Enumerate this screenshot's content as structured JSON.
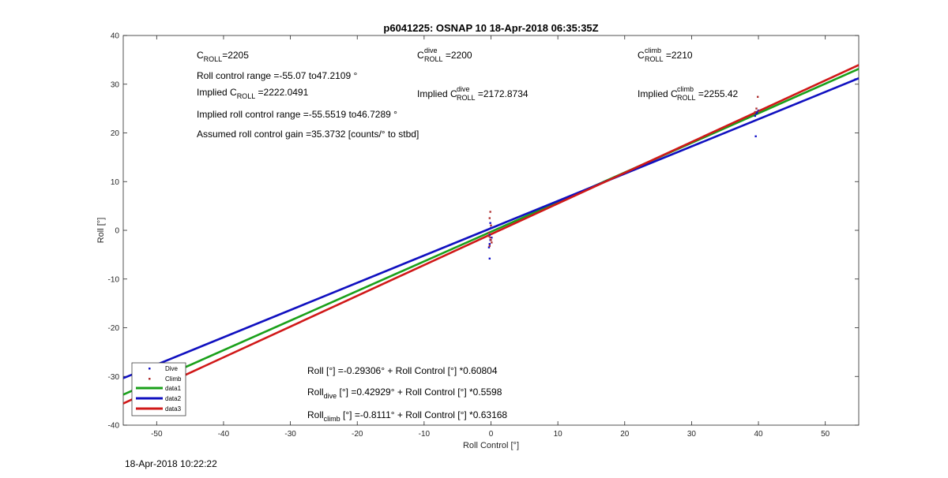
{
  "chart_data": {
    "type": "scatter",
    "title": "p6041225: OSNAP 10 18-Apr-2018 06:35:35Z",
    "xlabel": "Roll Control [°]",
    "ylabel": "Roll [°]",
    "xlim": [
      -55,
      55
    ],
    "ylim": [
      -40,
      40
    ],
    "xticks": [
      -50,
      -40,
      -30,
      -20,
      -10,
      0,
      10,
      20,
      30,
      40,
      50
    ],
    "yticks": [
      -40,
      -30,
      -20,
      -10,
      0,
      10,
      20,
      30,
      40
    ],
    "grid": false,
    "legend_position": "bottom-left",
    "series": [
      {
        "name": "Dive",
        "kind": "points",
        "color": "#1010c8",
        "points": [
          [
            -51.5,
            -28.5
          ],
          [
            -49.5,
            -27.5
          ],
          [
            -0.2,
            -5.8
          ],
          [
            -0.3,
            -3.5
          ],
          [
            -0.1,
            -2.0
          ],
          [
            -0.2,
            -1.0
          ],
          [
            0.0,
            0.5
          ],
          [
            -0.1,
            1.5
          ],
          [
            -0.2,
            -2.8
          ],
          [
            0.1,
            -1.5
          ],
          [
            39.6,
            19.3
          ],
          [
            39.5,
            23.5
          ],
          [
            39.7,
            24.0
          ],
          [
            40.0,
            24.6
          ],
          [
            39.8,
            24.2
          ],
          [
            54.5,
            31.0
          ]
        ]
      },
      {
        "name": "Climb",
        "kind": "points",
        "color": "#b03030",
        "points": [
          [
            -51.4,
            -30.7
          ],
          [
            -0.1,
            3.8
          ],
          [
            -0.2,
            2.5
          ],
          [
            0.0,
            1.0
          ],
          [
            -0.3,
            -0.5
          ],
          [
            -0.1,
            -1.5
          ],
          [
            0.1,
            -2.5
          ],
          [
            -0.2,
            -3.2
          ],
          [
            -0.3,
            -1.2
          ],
          [
            0.0,
            -2.0
          ],
          [
            39.9,
            27.4
          ],
          [
            39.7,
            25.0
          ],
          [
            39.5,
            24.3
          ],
          [
            40.1,
            24.5
          ]
        ]
      },
      {
        "name": "data1",
        "kind": "line",
        "color": "#1aa01a",
        "intercept": -0.29306,
        "slope": 0.60804
      },
      {
        "name": "data2",
        "kind": "line",
        "color": "#1010c0",
        "intercept": 0.42929,
        "slope": 0.5598
      },
      {
        "name": "data3",
        "kind": "line",
        "color": "#d01818",
        "intercept": -0.8111,
        "slope": 0.63168
      }
    ]
  },
  "annotations": {
    "c_roll": {
      "base": "C",
      "sub": "ROLL",
      "value": "=2205"
    },
    "roll_range": "Roll control range =-55.07 to47.2109 °",
    "implied_c_roll": {
      "prefix": "Implied C",
      "sub": "ROLL",
      "value": " =2222.0491"
    },
    "implied_range": "Implied roll control range =-55.5519 to46.7289 °",
    "assumed_gain": "Assumed roll control gain =35.3732 [counts/° to stbd]",
    "c_roll_dive": {
      "base": "C",
      "sub": "ROLL",
      "sup": "dive",
      "value": " =2200"
    },
    "implied_dive": {
      "prefix": "Implied C",
      "sub": "ROLL",
      "sup": "dive",
      "value": " =2172.8734"
    },
    "c_roll_climb": {
      "base": "C",
      "sub": "ROLL",
      "sup": "climb",
      "value": " =2210"
    },
    "implied_climb": {
      "prefix": "Implied C",
      "sub": "ROLL",
      "sup": "climb",
      "value": " =2255.42"
    },
    "fit_all": "Roll [°] =-0.29306° + Roll Control [°] *0.60804",
    "fit_dive": {
      "base": "Roll",
      "sub": "dive",
      "rest": " [°] =0.42929° + Roll Control [°] *0.5598"
    },
    "fit_climb": {
      "base": "Roll",
      "sub": "climb",
      "rest": " [°] =-0.8111° + Roll Control [°] *0.63168"
    }
  },
  "footer": "18-Apr-2018 10:22:22"
}
